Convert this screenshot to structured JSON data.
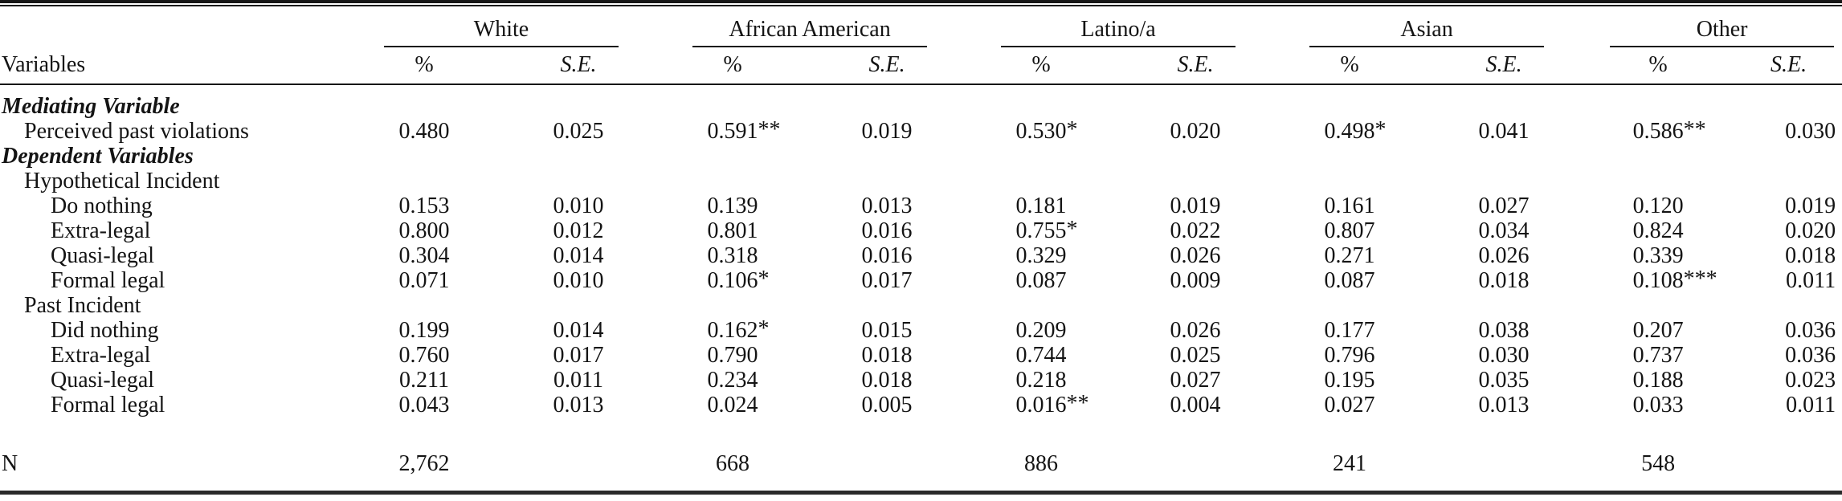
{
  "table": {
    "row_header_label": "Variables",
    "groups": [
      {
        "label": "White"
      },
      {
        "label": "African American"
      },
      {
        "label": "Latino/a"
      },
      {
        "label": "Asian"
      },
      {
        "label": "Other"
      }
    ],
    "subheader": {
      "pct_label": "%",
      "se_label": "S.E."
    },
    "rows": [
      {
        "label": "Mediating Variable",
        "style": "section",
        "indent": 0,
        "cells": []
      },
      {
        "label": "Perceived past violations",
        "style": "item",
        "indent": 1,
        "cells": [
          "0.480",
          "0.025",
          "0.591**",
          "0.019",
          "0.530*",
          "0.020",
          "0.498*",
          "0.041",
          "0.586**",
          "0.030"
        ]
      },
      {
        "label": "Dependent Variables",
        "style": "section",
        "indent": 0,
        "cells": []
      },
      {
        "label": "Hypothetical Incident",
        "style": "subsection",
        "indent": 1,
        "cells": []
      },
      {
        "label": "Do nothing",
        "style": "item",
        "indent": 2,
        "cells": [
          "0.153",
          "0.010",
          "0.139",
          "0.013",
          "0.181",
          "0.019",
          "0.161",
          "0.027",
          "0.120",
          "0.019"
        ]
      },
      {
        "label": "Extra-legal",
        "style": "item",
        "indent": 2,
        "cells": [
          "0.800",
          "0.012",
          "0.801",
          "0.016",
          "0.755*",
          "0.022",
          "0.807",
          "0.034",
          "0.824",
          "0.020"
        ]
      },
      {
        "label": "Quasi-legal",
        "style": "item",
        "indent": 2,
        "cells": [
          "0.304",
          "0.014",
          "0.318",
          "0.016",
          "0.329",
          "0.026",
          "0.271",
          "0.026",
          "0.339",
          "0.018"
        ]
      },
      {
        "label": "Formal legal",
        "style": "item",
        "indent": 2,
        "cells": [
          "0.071",
          "0.010",
          "0.106*",
          "0.017",
          "0.087",
          "0.009",
          "0.087",
          "0.018",
          "0.108***",
          "0.011"
        ]
      },
      {
        "label": "Past Incident",
        "style": "subsection",
        "indent": 1,
        "cells": []
      },
      {
        "label": "Did nothing",
        "style": "item",
        "indent": 2,
        "cells": [
          "0.199",
          "0.014",
          "0.162*",
          "0.015",
          "0.209",
          "0.026",
          "0.177",
          "0.038",
          "0.207",
          "0.036"
        ]
      },
      {
        "label": "Extra-legal",
        "style": "item",
        "indent": 2,
        "cells": [
          "0.760",
          "0.017",
          "0.790",
          "0.018",
          "0.744",
          "0.025",
          "0.796",
          "0.030",
          "0.737",
          "0.036"
        ]
      },
      {
        "label": "Quasi-legal",
        "style": "item",
        "indent": 2,
        "cells": [
          "0.211",
          "0.011",
          "0.234",
          "0.018",
          "0.218",
          "0.027",
          "0.195",
          "0.035",
          "0.188",
          "0.023"
        ]
      },
      {
        "label": "Formal legal",
        "style": "item",
        "indent": 2,
        "cells": [
          "0.043",
          "0.013",
          "0.024",
          "0.005",
          "0.016**",
          "0.004",
          "0.027",
          "0.013",
          "0.033",
          "0.011"
        ]
      }
    ],
    "n_row": {
      "label": "N",
      "values": [
        "2,762",
        "668",
        "886",
        "241",
        "548"
      ]
    }
  }
}
